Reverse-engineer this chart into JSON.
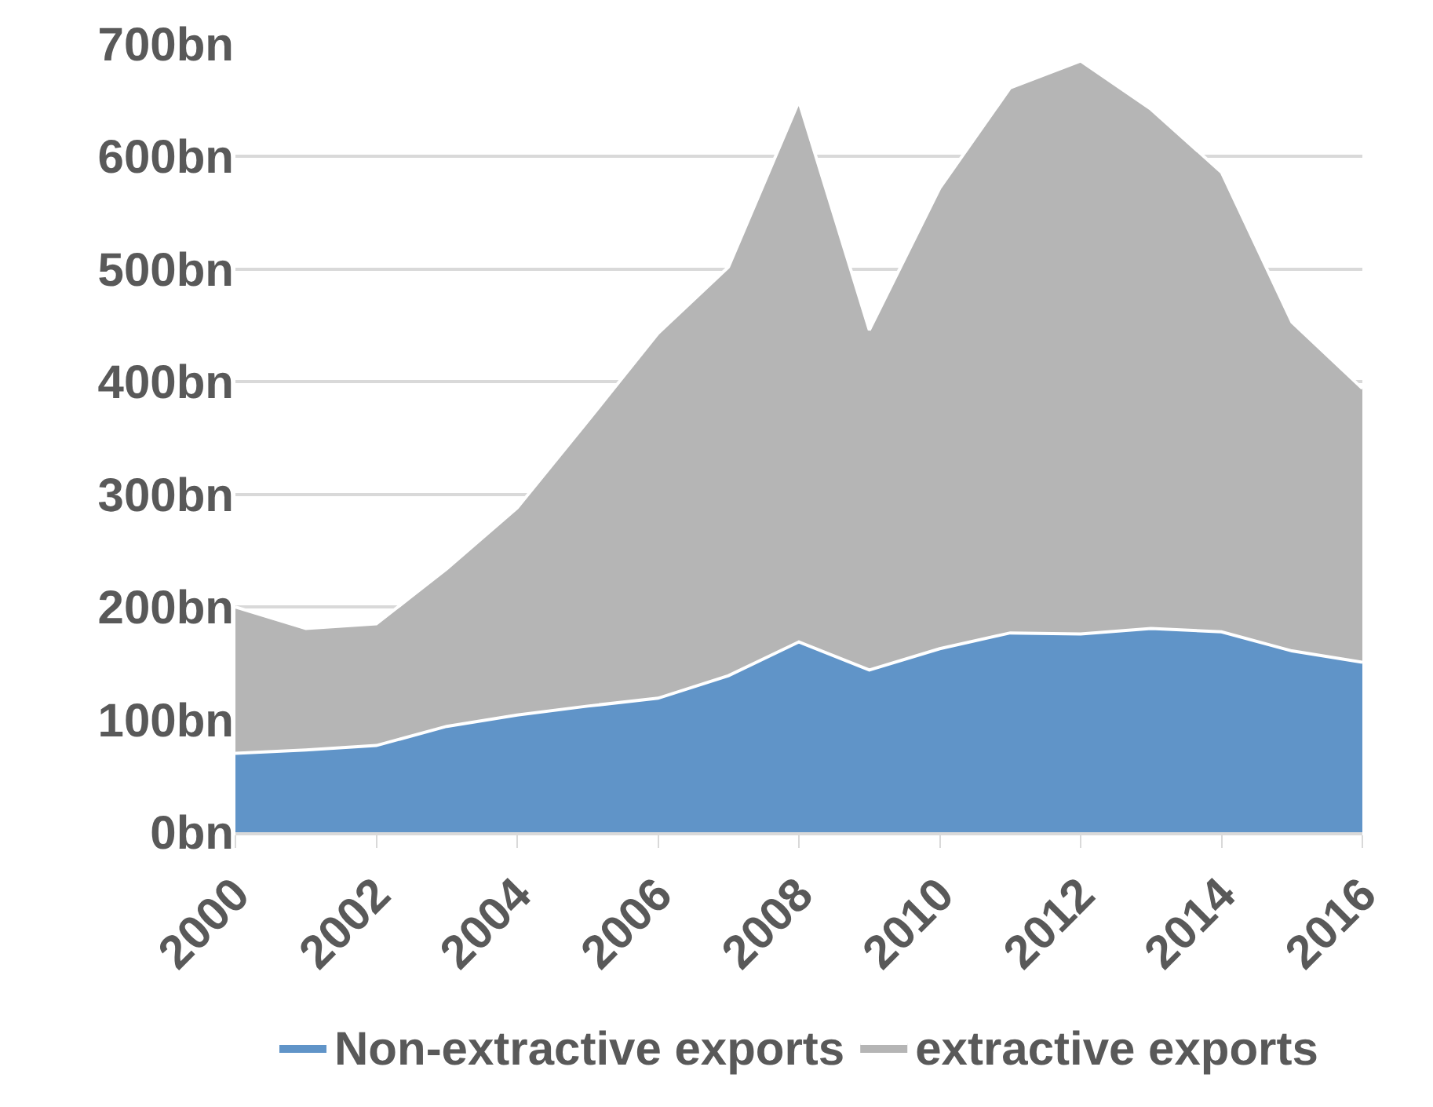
{
  "chart_data": {
    "type": "area",
    "stacked": true,
    "x": [
      2000,
      2001,
      2002,
      2003,
      2004,
      2005,
      2006,
      2007,
      2008,
      2009,
      2010,
      2011,
      2012,
      2013,
      2014,
      2015,
      2016
    ],
    "series": [
      {
        "name": "Non-extractive exports",
        "color": "#6094c8",
        "values": [
          70,
          73,
          77,
          94,
          104,
          112,
          119,
          139,
          169,
          144,
          163,
          177,
          176,
          181,
          178,
          161,
          151
        ]
      },
      {
        "name": "extractive exports",
        "color": "#b5b5b5",
        "values": [
          130,
          108,
          108,
          140,
          184,
          253,
          324,
          363,
          480,
          302,
          409,
          484,
          509,
          461,
          408,
          292,
          243
        ]
      }
    ],
    "xlim": [
      2000,
      2016
    ],
    "xticks": [
      2000,
      2002,
      2004,
      2006,
      2008,
      2010,
      2012,
      2014,
      2016
    ],
    "ylim": [
      0,
      700
    ],
    "yticks": [
      {
        "value": 0,
        "label": "0bn"
      },
      {
        "value": 100,
        "label": "100bn"
      },
      {
        "value": 200,
        "label": "200bn"
      },
      {
        "value": 300,
        "label": "300bn"
      },
      {
        "value": 400,
        "label": "400bn"
      },
      {
        "value": 500,
        "label": "500bn"
      },
      {
        "value": 600,
        "label": "600bn"
      },
      {
        "value": 700,
        "label": "700bn"
      }
    ],
    "grid": "y",
    "legend": "bottom"
  }
}
